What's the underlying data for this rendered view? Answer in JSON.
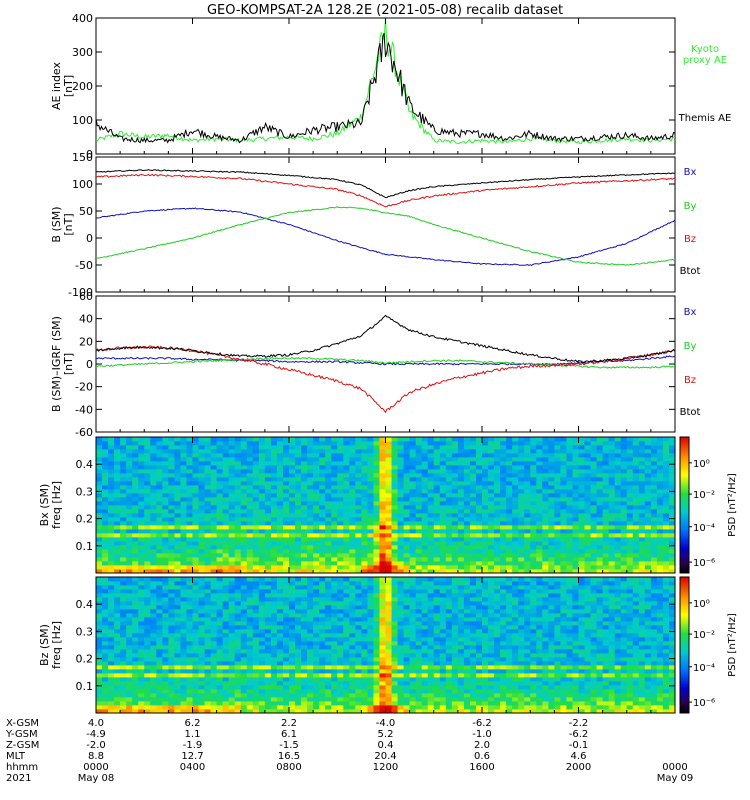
{
  "title": "GEO-KOMPSAT-2A 128.2E (2021-05-08) recalib dataset",
  "colors": {
    "black": "#000000",
    "green": "#22cc22",
    "kyoto": "#33ee33",
    "red": "#dd1111",
    "blue": "#1111bb"
  },
  "chart_data": [
    {
      "type": "line",
      "panel": "ae",
      "ylabel": "AE index\n[nT]",
      "ylim": [
        0,
        400
      ],
      "yticks": [
        "0",
        "100",
        "200",
        "300",
        "400"
      ],
      "x": [
        0,
        1,
        2,
        3,
        4,
        5,
        6,
        7,
        8,
        9,
        10,
        11,
        12,
        13,
        14,
        15,
        16,
        17,
        18,
        19,
        20,
        21,
        22,
        23,
        24
      ],
      "series": [
        {
          "name": "Kyoto\nproxy AE",
          "color": "#33ee33",
          "values": [
            40,
            60,
            50,
            55,
            40,
            45,
            40,
            45,
            50,
            45,
            60,
            110,
            360,
            120,
            40,
            35,
            40,
            35,
            45,
            40,
            35,
            40,
            45,
            40,
            45
          ]
        },
        {
          "name": "Themis AE",
          "color": "#000000",
          "values": [
            90,
            45,
            40,
            40,
            70,
            50,
            40,
            80,
            50,
            70,
            80,
            90,
            340,
            140,
            70,
            60,
            60,
            45,
            60,
            45,
            45,
            50,
            55,
            45,
            55
          ]
        }
      ]
    },
    {
      "type": "line",
      "panel": "b",
      "ylabel": "B (SM)\n[nT]",
      "ylim": [
        -100,
        150
      ],
      "yticks": [
        "-100",
        "-50",
        "0",
        "50",
        "100",
        "150"
      ],
      "x": [
        0,
        2,
        4,
        6,
        8,
        10,
        11,
        12,
        13,
        14,
        16,
        18,
        20,
        22,
        24
      ],
      "series": [
        {
          "name": "Bx",
          "color": "#1111bb",
          "values": [
            37,
            50,
            55,
            48,
            25,
            -5,
            -18,
            -30,
            -35,
            -40,
            -48,
            -50,
            -35,
            -10,
            33
          ]
        },
        {
          "name": "By",
          "color": "#22cc22",
          "values": [
            -38,
            -20,
            0,
            25,
            47,
            57,
            55,
            47,
            40,
            25,
            0,
            -25,
            -45,
            -50,
            -40
          ]
        },
        {
          "name": "Bz",
          "color": "#dd1111",
          "values": [
            113,
            117,
            114,
            110,
            100,
            90,
            78,
            58,
            70,
            78,
            88,
            95,
            102,
            106,
            110
          ]
        },
        {
          "name": "Btot",
          "color": "#000000",
          "values": [
            122,
            126,
            124,
            122,
            116,
            108,
            98,
            75,
            88,
            95,
            102,
            108,
            113,
            117,
            120
          ]
        }
      ]
    },
    {
      "type": "line",
      "panel": "dbigrf",
      "ylabel": "B (SM)–IGRF (SM)\n[nT]",
      "ylim": [
        -60,
        60
      ],
      "yticks": [
        "-60",
        "-40",
        "-20",
        "0",
        "20",
        "40",
        "60"
      ],
      "x": [
        0,
        1,
        2,
        3,
        4,
        5,
        6,
        7,
        8,
        9,
        10,
        11,
        12,
        13,
        14,
        15,
        16,
        17,
        18,
        19,
        20,
        21,
        22,
        23,
        24
      ],
      "series": [
        {
          "name": "Bx",
          "color": "#1111bb",
          "values": [
            5,
            5,
            5,
            5,
            4,
            4,
            3,
            3,
            2,
            2,
            2,
            1,
            0,
            0,
            0,
            0,
            0,
            0,
            0,
            0,
            1,
            2,
            3,
            5,
            7
          ]
        },
        {
          "name": "By",
          "color": "#22cc22",
          "values": [
            -2,
            -1,
            0,
            1,
            2,
            3,
            4,
            5,
            5,
            5,
            4,
            3,
            1,
            2,
            3,
            3,
            2,
            1,
            0,
            -1,
            -2,
            -3,
            -3,
            -3,
            -2
          ]
        },
        {
          "name": "Bz",
          "color": "#dd1111",
          "values": [
            12,
            14,
            15,
            14,
            12,
            8,
            4,
            0,
            -5,
            -10,
            -15,
            -22,
            -42,
            -25,
            -18,
            -12,
            -8,
            -4,
            -2,
            -1,
            0,
            2,
            5,
            8,
            12
          ]
        },
        {
          "name": "Btot",
          "color": "#000000",
          "values": [
            12,
            14,
            15,
            14,
            12,
            9,
            7,
            7,
            8,
            12,
            18,
            25,
            42,
            30,
            24,
            20,
            16,
            12,
            8,
            5,
            2,
            3,
            5,
            8,
            12
          ]
        }
      ]
    },
    {
      "type": "heatmap",
      "panel": "bx_psd",
      "ylabel": "Bx (SM)\nfreq [Hz]",
      "ylim": [
        0,
        0.5
      ],
      "yticks": [
        "0.1",
        "0.2",
        "0.3",
        "0.4"
      ],
      "colorbar_label": "PSD [nT²/Hz]",
      "colorbar_ticks": [
        "10⁰",
        "10⁻²",
        "10⁻⁴",
        "10⁻⁶"
      ]
    },
    {
      "type": "heatmap",
      "panel": "bz_psd",
      "ylabel": "Bz (SM)\nfreq [Hz]",
      "ylim": [
        0,
        0.5
      ],
      "yticks": [
        "0.1",
        "0.2",
        "0.3",
        "0.4"
      ],
      "colorbar_label": "PSD [nT²/Hz]",
      "colorbar_ticks": [
        "10⁰",
        "10⁻²",
        "10⁻⁴",
        "10⁻⁶"
      ]
    }
  ],
  "xaxis": {
    "row_labels": [
      "X-GSM",
      "Y-GSM",
      "Z-GSM",
      "MLT",
      "hhmm",
      "2021"
    ],
    "columns": [
      [
        "4.0",
        "-4.9",
        "-2.0",
        "8.8",
        "0000",
        "May 08"
      ],
      [
        "6.2",
        "1.1",
        "-1.9",
        "12.7",
        "0400",
        ""
      ],
      [
        "2.2",
        "6.1",
        "-1.5",
        "16.5",
        "0800",
        ""
      ],
      [
        "-4.0",
        "5.2",
        "0.4",
        "20.4",
        "1200",
        ""
      ],
      [
        "-6.2",
        "-1.0",
        "2.0",
        "0.6",
        "1600",
        ""
      ],
      [
        "-2.2",
        "-6.2",
        "-0.1",
        "4.6",
        "2000",
        ""
      ],
      [
        "",
        "",
        "",
        "",
        "0000",
        "May 09"
      ]
    ]
  }
}
